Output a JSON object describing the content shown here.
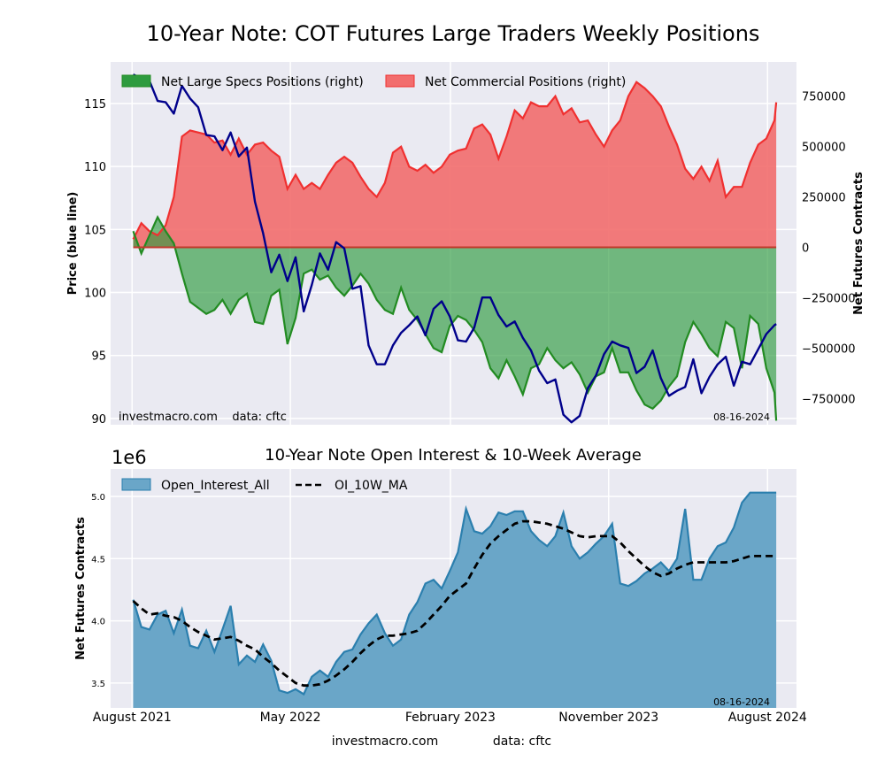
{
  "figure_title": "10-Year Note: COT Futures Large Traders Weekly Positions",
  "colors": {
    "price_line": "#00008b",
    "specs_fill": "#2e9b3f",
    "specs_line": "#228b22",
    "comm_fill": "#f26d6d",
    "comm_line": "#f03030",
    "oi_fill": "#6aa6c8",
    "oi_line": "#2b7fae",
    "ma_line": "#000000",
    "plot_bg": "#eaeaf2",
    "grid": "#ffffff"
  },
  "top": {
    "ylabel_left": "Price (blue line)",
    "ylabel_right": "Net Futures Contracts",
    "legend": {
      "specs": "Net Large Specs Positions (right)",
      "comm": "Net Commercial Positions (right)"
    },
    "source_left": "investmacro.com    data: cftc",
    "date_stamp": "08-16-2024",
    "left_ticks": [
      "115",
      "110",
      "105",
      "100",
      "95",
      "90"
    ],
    "right_ticks": [
      "750000",
      "500000",
      "250000",
      "0",
      "−250000",
      "−500000",
      "−750000"
    ]
  },
  "bottom": {
    "title": "10-Year Note Open Interest & 10-Week Average",
    "ylabel": "Net Futures Contracts",
    "scale_label": "1e6",
    "legend": {
      "oi": "Open_Interest_All",
      "ma": "OI_10W_MA"
    },
    "date_stamp": "08-16-2024",
    "y_ticks": [
      "5.0",
      "4.5",
      "4.0",
      "3.5"
    ],
    "x_ticks": [
      "August 2021",
      "May 2022",
      "February 2023",
      "November 2023",
      "August 2024"
    ]
  },
  "footer": {
    "source": "investmacro.com",
    "data": "data: cftc"
  },
  "chart_data": [
    {
      "type": "area",
      "title": "10-Year Note: COT Futures Large Traders Weekly Positions",
      "ylabel_left": "Price (blue line)",
      "ylabel_right": "Net Futures Contracts",
      "ylim_left": [
        89.5,
        118.3
      ],
      "ylim_right": [
        -880000,
        920000
      ],
      "x_range": [
        "2021-06-25",
        "2024-09-20"
      ],
      "grid": true,
      "legend_position": "top-left",
      "dates": [
        "2021-08-03",
        "2021-08-17",
        "2021-08-31",
        "2021-09-14",
        "2021-09-28",
        "2021-10-12",
        "2021-10-26",
        "2021-11-09",
        "2021-11-23",
        "2021-12-07",
        "2021-12-21",
        "2022-01-04",
        "2022-01-18",
        "2022-02-01",
        "2022-02-15",
        "2022-03-01",
        "2022-03-15",
        "2022-03-29",
        "2022-04-12",
        "2022-04-26",
        "2022-05-10",
        "2022-05-24",
        "2022-06-07",
        "2022-06-21",
        "2022-07-05",
        "2022-07-19",
        "2022-08-02",
        "2022-08-16",
        "2022-08-30",
        "2022-09-13",
        "2022-09-27",
        "2022-10-11",
        "2022-10-25",
        "2022-11-08",
        "2022-11-22",
        "2022-12-06",
        "2022-12-20",
        "2023-01-03",
        "2023-01-17",
        "2023-01-31",
        "2023-02-14",
        "2023-02-28",
        "2023-03-14",
        "2023-03-28",
        "2023-04-11",
        "2023-04-25",
        "2023-05-09",
        "2023-05-23",
        "2023-06-06",
        "2023-06-20",
        "2023-07-04",
        "2023-07-18",
        "2023-08-01",
        "2023-08-15",
        "2023-08-29",
        "2023-09-12",
        "2023-09-26",
        "2023-10-10",
        "2023-10-24",
        "2023-11-07",
        "2023-11-21",
        "2023-12-05",
        "2023-12-19",
        "2024-01-02",
        "2024-01-16",
        "2024-01-30",
        "2024-02-13",
        "2024-02-27",
        "2024-03-12",
        "2024-03-26",
        "2024-04-09",
        "2024-04-23",
        "2024-05-07",
        "2024-05-21",
        "2024-06-04",
        "2024-06-18",
        "2024-07-02",
        "2024-07-16",
        "2024-07-30",
        "2024-08-13",
        "2024-08-16"
      ],
      "series": [
        {
          "name": "Net Large Specs Positions (right)",
          "axis": "right",
          "values": [
            80000,
            -30000,
            60000,
            150000,
            80000,
            20000,
            -130000,
            -270000,
            -300000,
            -330000,
            -310000,
            -260000,
            -330000,
            -260000,
            -230000,
            -370000,
            -380000,
            -240000,
            -210000,
            -480000,
            -350000,
            -130000,
            -110000,
            -160000,
            -140000,
            -200000,
            -240000,
            -190000,
            -130000,
            -180000,
            -260000,
            -310000,
            -330000,
            -200000,
            -310000,
            -360000,
            -430000,
            -500000,
            -520000,
            -390000,
            -340000,
            -360000,
            -410000,
            -470000,
            -600000,
            -650000,
            -560000,
            -640000,
            -730000,
            -600000,
            -580000,
            -500000,
            -560000,
            -600000,
            -570000,
            -630000,
            -720000,
            -640000,
            -620000,
            -500000,
            -620000,
            -620000,
            -710000,
            -780000,
            -800000,
            -760000,
            -690000,
            -640000,
            -470000,
            -370000,
            -430000,
            -500000,
            -540000,
            -370000,
            -400000,
            -600000,
            -340000,
            -380000,
            -600000,
            -720000,
            -860000
          ]
        },
        {
          "name": "Net Commercial Positions (right)",
          "axis": "right",
          "values": [
            40000,
            120000,
            80000,
            60000,
            110000,
            250000,
            550000,
            580000,
            570000,
            560000,
            520000,
            530000,
            460000,
            540000,
            460000,
            510000,
            520000,
            480000,
            450000,
            290000,
            360000,
            290000,
            320000,
            290000,
            360000,
            420000,
            450000,
            420000,
            350000,
            290000,
            250000,
            320000,
            470000,
            500000,
            400000,
            380000,
            410000,
            370000,
            400000,
            460000,
            480000,
            490000,
            590000,
            610000,
            560000,
            440000,
            550000,
            680000,
            640000,
            720000,
            700000,
            700000,
            750000,
            660000,
            690000,
            620000,
            630000,
            560000,
            500000,
            580000,
            630000,
            750000,
            820000,
            790000,
            750000,
            700000,
            600000,
            510000,
            390000,
            340000,
            400000,
            330000,
            430000,
            250000,
            300000,
            300000,
            420000,
            510000,
            540000,
            630000,
            720000
          ]
        },
        {
          "name": "Price",
          "axis": "left",
          "values": [
            117.3,
            117,
            116.8,
            115.2,
            115.1,
            114.2,
            116.4,
            115.4,
            114.7,
            112.5,
            112.4,
            111.3,
            112.7,
            110.8,
            111.5,
            107.2,
            104.7,
            101.6,
            103,
            100.9,
            102.8,
            98.5,
            100.6,
            103.1,
            101.8,
            104,
            103.5,
            100.3,
            100.5,
            95.8,
            94.3,
            94.3,
            95.8,
            96.8,
            97.4,
            98.1,
            96.6,
            98.7,
            99.3,
            98.1,
            96.2,
            96.1,
            97.2,
            99.6,
            99.6,
            98.2,
            97.3,
            97.7,
            96.4,
            95.4,
            93.8,
            92.8,
            93.1,
            90.3,
            89.7,
            90.2,
            92.4,
            93.4,
            95.1,
            96.1,
            95.8,
            95.6,
            93.6,
            94.1,
            95.4,
            93.2,
            91.8,
            92.2,
            92.5,
            94.7,
            92,
            93.3,
            94.3,
            94.9,
            92.6,
            94.5,
            94.3,
            95.5,
            96.7,
            97.4,
            97.5
          ]
        }
      ]
    },
    {
      "type": "area",
      "title": "10-Year Note Open Interest & 10-Week Average",
      "ylabel": "Net Futures Contracts",
      "y_scale": "1e6",
      "ylim": [
        3.3,
        5.22
      ],
      "x_range": [
        "2021-06-25",
        "2024-09-20"
      ],
      "x_ticks": [
        "August 2021",
        "May 2022",
        "February 2023",
        "November 2023",
        "August 2024"
      ],
      "grid": true,
      "legend_position": "top-left",
      "dates": [
        "2021-08-03",
        "2021-08-17",
        "2021-08-31",
        "2021-09-14",
        "2021-09-28",
        "2021-10-12",
        "2021-10-26",
        "2021-11-09",
        "2021-11-23",
        "2021-12-07",
        "2021-12-21",
        "2022-01-04",
        "2022-01-18",
        "2022-02-01",
        "2022-02-15",
        "2022-03-01",
        "2022-03-15",
        "2022-03-29",
        "2022-04-12",
        "2022-04-26",
        "2022-05-10",
        "2022-05-24",
        "2022-06-07",
        "2022-06-21",
        "2022-07-05",
        "2022-07-19",
        "2022-08-02",
        "2022-08-16",
        "2022-08-30",
        "2022-09-13",
        "2022-09-27",
        "2022-10-11",
        "2022-10-25",
        "2022-11-08",
        "2022-11-22",
        "2022-12-06",
        "2022-12-20",
        "2023-01-03",
        "2023-01-17",
        "2023-01-31",
        "2023-02-14",
        "2023-02-28",
        "2023-03-14",
        "2023-03-28",
        "2023-04-11",
        "2023-04-25",
        "2023-05-09",
        "2023-05-23",
        "2023-06-06",
        "2023-06-20",
        "2023-07-04",
        "2023-07-18",
        "2023-08-01",
        "2023-08-15",
        "2023-08-29",
        "2023-09-12",
        "2023-09-26",
        "2023-10-10",
        "2023-10-24",
        "2023-11-07",
        "2023-11-21",
        "2023-12-05",
        "2023-12-19",
        "2024-01-02",
        "2024-01-16",
        "2024-01-30",
        "2024-02-13",
        "2024-02-27",
        "2024-03-12",
        "2024-03-26",
        "2024-04-09",
        "2024-04-23",
        "2024-05-07",
        "2024-05-21",
        "2024-06-04",
        "2024-06-18",
        "2024-07-02",
        "2024-07-16",
        "2024-07-30",
        "2024-08-13",
        "2024-08-16"
      ],
      "series": [
        {
          "name": "Open_Interest_All",
          "values": [
            4.17,
            3.95,
            3.93,
            4.05,
            4.08,
            3.9,
            4.09,
            3.8,
            3.78,
            3.92,
            3.75,
            3.93,
            4.12,
            3.65,
            3.72,
            3.67,
            3.81,
            3.68,
            3.44,
            3.42,
            3.45,
            3.41,
            3.55,
            3.6,
            3.55,
            3.67,
            3.75,
            3.77,
            3.89,
            3.98,
            4.05,
            3.9,
            3.8,
            3.85,
            4.05,
            4.15,
            4.3,
            4.33,
            4.26,
            4.4,
            4.55,
            4.9,
            4.72,
            4.7,
            4.76,
            4.87,
            4.85,
            4.88,
            4.88,
            4.72,
            4.65,
            4.6,
            4.68,
            4.87,
            4.6,
            4.5,
            4.55,
            4.62,
            4.68,
            4.78,
            4.3,
            4.28,
            4.32,
            4.38,
            4.42,
            4.47,
            4.4,
            4.5,
            4.9,
            4.33,
            4.33,
            4.5,
            4.6,
            4.63,
            4.75,
            4.95,
            5.03,
            5.03,
            5.03,
            5.03,
            5.03
          ]
        },
        {
          "name": "OI_10W_MA",
          "values": [
            4.16,
            4.1,
            4.05,
            4.06,
            4.04,
            4.03,
            4.0,
            3.95,
            3.91,
            3.88,
            3.85,
            3.86,
            3.87,
            3.84,
            3.8,
            3.77,
            3.71,
            3.66,
            3.6,
            3.55,
            3.5,
            3.48,
            3.48,
            3.49,
            3.52,
            3.56,
            3.61,
            3.67,
            3.74,
            3.8,
            3.85,
            3.88,
            3.88,
            3.89,
            3.9,
            3.92,
            3.98,
            4.05,
            4.12,
            4.2,
            4.25,
            4.3,
            4.42,
            4.53,
            4.62,
            4.68,
            4.73,
            4.78,
            4.8,
            4.8,
            4.79,
            4.78,
            4.76,
            4.74,
            4.71,
            4.68,
            4.67,
            4.68,
            4.68,
            4.68,
            4.63,
            4.56,
            4.5,
            4.44,
            4.39,
            4.36,
            4.38,
            4.42,
            4.45,
            4.47,
            4.47,
            4.47,
            4.47,
            4.47,
            4.48,
            4.5,
            4.52,
            4.52,
            4.52,
            4.52,
            4.52
          ]
        }
      ]
    }
  ]
}
